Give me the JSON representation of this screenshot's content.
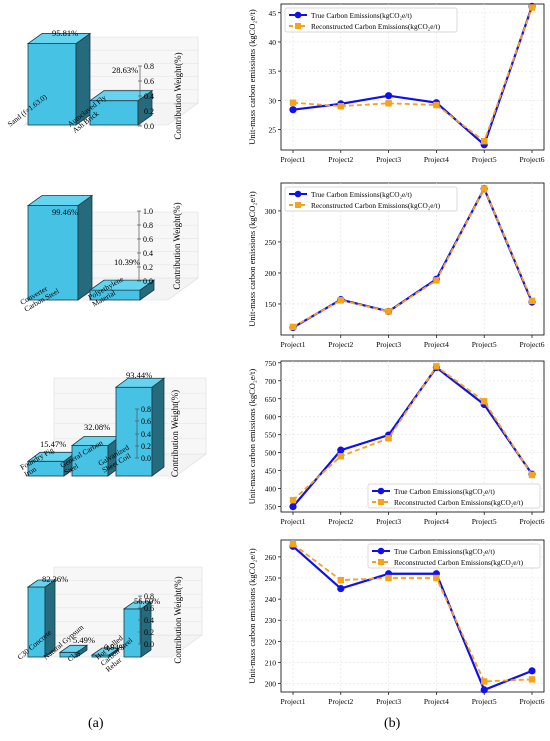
{
  "panel_labels": [
    "(a)",
    "(b)"
  ],
  "colors": {
    "bar_front": "#45c2e4",
    "bar_top": "#67d4ef",
    "bar_side": "#2a8fae",
    "true_line": "#1010ee",
    "recon_line": "#f5a31a",
    "grid": "#e3e3e3"
  },
  "chart_data": [
    {
      "type": "bar",
      "subtype": "3d-bar",
      "categories": [
        "Sand (f=1.63.0)",
        "Autoclaved Fly Ash Brick"
      ],
      "values": [
        0.9581,
        0.2863
      ],
      "data_labels": [
        "95.81%",
        "28.63%"
      ],
      "zlabel": "Contribution Weight(%)",
      "zticks": [
        "0.0",
        "0.2",
        "0.4",
        "0.6",
        "0.8"
      ],
      "zlim": [
        0,
        1.0
      ]
    },
    {
      "type": "line",
      "x": [
        "Project1",
        "Project2",
        "Project3",
        "Project4",
        "Project5",
        "Project6"
      ],
      "ylabel": "Unit-mass carbon emissions (kgCO₂e/t)",
      "yticks": [
        25,
        30,
        35,
        40,
        45
      ],
      "ylim": [
        21.5,
        46.5
      ],
      "legend": "top-left",
      "grid": true,
      "series": [
        {
          "name": "True Carbon Emissions(kgCO₂e/t)",
          "values": [
            28.4,
            29.4,
            30.8,
            29.6,
            22.4,
            46.1
          ]
        },
        {
          "name": "Reconstructed Carbon Emissions(kgCO₂e/t)",
          "values": [
            29.6,
            29.0,
            29.5,
            29.2,
            23.0,
            45.9
          ]
        }
      ]
    },
    {
      "type": "bar",
      "subtype": "3d-bar",
      "categories": [
        "Converter Carbon Steel",
        "Polyethylene Material"
      ],
      "values": [
        0.9946,
        0.1039
      ],
      "data_labels": [
        "99.46%",
        "10.39%"
      ],
      "zlabel": "Contribution Weight(%)",
      "zticks": [
        "0.0",
        "0.2",
        "0.4",
        "0.6",
        "0.8",
        "1.0"
      ],
      "zlim": [
        0,
        1.0
      ]
    },
    {
      "type": "line",
      "x": [
        "Project1",
        "Project2",
        "Project3",
        "Project4",
        "Project5",
        "Project6"
      ],
      "ylabel": "Unit-mass carbon emissions (kgCO₂e/t)",
      "yticks": [
        150,
        200,
        250,
        300
      ],
      "ylim": [
        100,
        345
      ],
      "legend": "top-left",
      "grid": true,
      "series": [
        {
          "name": "True Carbon Emissions(kgCO₂e/t)",
          "values": [
            112,
            157,
            138,
            190,
            336,
            153
          ]
        },
        {
          "name": "Reconstructed Carbon Emissions(kgCO₂e/t)",
          "values": [
            113,
            156,
            138,
            188,
            336,
            155
          ]
        }
      ]
    },
    {
      "type": "bar",
      "subtype": "3d-bar",
      "categories": [
        "Foundry Pig Iron",
        "General Carbon Steel",
        "Galvanized Sheet Coil"
      ],
      "values": [
        0.1547,
        0.3208,
        0.9344
      ],
      "data_labels": [
        "15.47%",
        "32.08%",
        "93.44%"
      ],
      "zlabel": "Contribution Weight(%)",
      "zticks": [
        "0.0",
        "0.2",
        "0.4",
        "0.6",
        "0.8"
      ],
      "zlim": [
        0,
        1.0
      ]
    },
    {
      "type": "line",
      "x": [
        "Project1",
        "Project2",
        "Project3",
        "Project4",
        "Project5",
        "Project6"
      ],
      "ylabel": "Unit-mass carbon emissions (kgCO₂e/t)",
      "yticks": [
        350,
        400,
        450,
        500,
        550,
        600,
        650,
        700,
        750
      ],
      "ylim": [
        335,
        755
      ],
      "legend": "bottom-right",
      "grid": true,
      "series": [
        {
          "name": "True Carbon Emissions(kgCO₂e/t)",
          "values": [
            350,
            507,
            549,
            737,
            634,
            440
          ]
        },
        {
          "name": "Reconstructed Carbon Emissions(kgCO₂e/t)",
          "values": [
            368,
            490,
            540,
            740,
            643,
            438
          ]
        }
      ]
    },
    {
      "type": "bar",
      "subtype": "3d-bar",
      "categories": [
        "C30 Concrete",
        "Natural Gypsum",
        "Clay",
        "Hot Rolled Carbon Steel Rebar"
      ],
      "values": [
        0.8236,
        0.0549,
        0.0094,
        0.566
      ],
      "data_labels": [
        "82.36%",
        "5.49%",
        "0.94%",
        "56.60%"
      ],
      "zlabel": "Contribution Weight(%)",
      "zticks": [
        "0.0",
        "0.2",
        "0.4",
        "0.6",
        "0.8"
      ],
      "zlim": [
        0,
        1.0
      ]
    },
    {
      "type": "line",
      "x": [
        "Project1",
        "Project2",
        "Project3",
        "Project4",
        "Project5",
        "Project6"
      ],
      "ylabel": "Unit-mass carbon emissions (kgCO₂e/t)",
      "yticks": [
        200,
        210,
        220,
        230,
        240,
        250,
        260
      ],
      "ylim": [
        196,
        268
      ],
      "legend": "top-right",
      "grid": true,
      "series": [
        {
          "name": "True Carbon Emissions(kgCO₂e/t)",
          "values": [
            265,
            245,
            252,
            252,
            197,
            206
          ]
        },
        {
          "name": "Reconstructed Carbon Emissions(kgCO₂e/t)",
          "values": [
            266,
            249,
            250,
            250,
            201,
            202
          ]
        }
      ]
    }
  ]
}
